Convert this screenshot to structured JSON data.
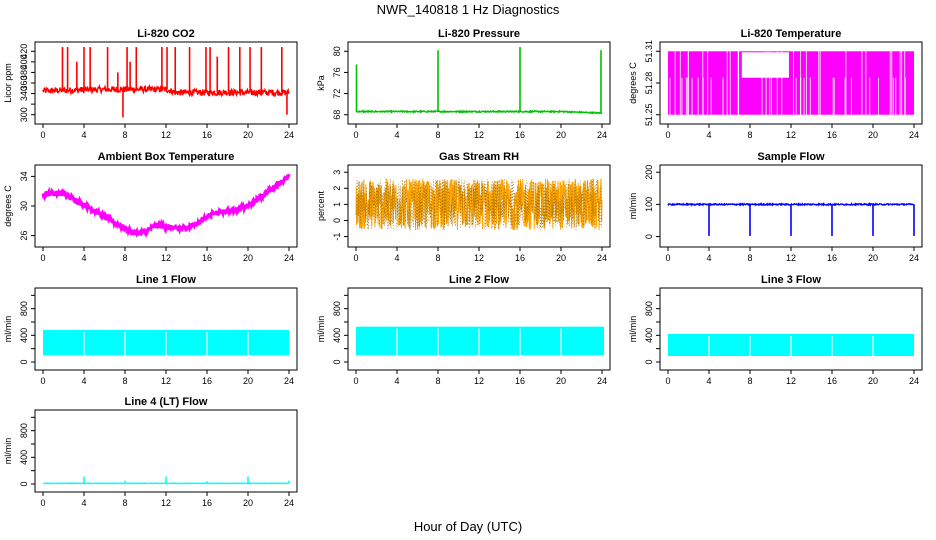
{
  "figure": {
    "title": "NWR_140818  1 Hz Diagnostics",
    "xlabel": "Hour of Day (UTC)"
  },
  "chart_data": [
    {
      "type": "line",
      "title": "Li-820 CO2",
      "ylabel": "Licor ppm",
      "xlim": [
        0,
        24
      ],
      "ylim": [
        290,
        430
      ],
      "xticks": [
        0,
        4,
        8,
        12,
        16,
        20,
        24
      ],
      "yticks": [
        300,
        320,
        340,
        360,
        380,
        400,
        420
      ],
      "yticklabels": [
        "300",
        "",
        "340",
        "360",
        "380",
        "400",
        "420"
      ],
      "color": "#ff0000",
      "baseline_segments": [
        [
          0,
          345
        ],
        [
          6,
          348
        ],
        [
          12,
          348
        ],
        [
          13,
          342
        ],
        [
          24,
          342
        ]
      ],
      "noise": 6,
      "spikes": [
        [
          1.9,
          428
        ],
        [
          2.4,
          428
        ],
        [
          3.3,
          400
        ],
        [
          4,
          428
        ],
        [
          4.6,
          428
        ],
        [
          6.3,
          428
        ],
        [
          7.3,
          380
        ],
        [
          7.8,
          295
        ],
        [
          8.2,
          428
        ],
        [
          8.5,
          400
        ],
        [
          9.1,
          428
        ],
        [
          11.6,
          428
        ],
        [
          12.1,
          428
        ],
        [
          12.9,
          428
        ],
        [
          14.3,
          428
        ],
        [
          15.9,
          428
        ],
        [
          16.3,
          428
        ],
        [
          17,
          410
        ],
        [
          18.1,
          428
        ],
        [
          19.2,
          428
        ],
        [
          20.2,
          428
        ],
        [
          21.3,
          428
        ],
        [
          23.3,
          428
        ],
        [
          23.8,
          300
        ]
      ]
    },
    {
      "type": "line",
      "title": "Li-820 Pressure",
      "ylabel": "kPa",
      "xlim": [
        0,
        24
      ],
      "ylim": [
        67,
        81
      ],
      "xticks": [
        0,
        4,
        8,
        12,
        16,
        20,
        24
      ],
      "yticks": [
        68,
        72,
        76,
        80
      ],
      "yticklabels": [
        "68",
        "72",
        "76",
        "80"
      ],
      "color": "#00c000",
      "baseline_segments": [
        [
          0,
          68.6
        ],
        [
          20,
          68.6
        ],
        [
          24,
          68.3
        ]
      ],
      "noise": 0.12,
      "spikes": [
        [
          0.05,
          77.5
        ],
        [
          8,
          80.2
        ],
        [
          16,
          80.8
        ],
        [
          23.9,
          80.2
        ]
      ]
    },
    {
      "type": "band",
      "title": "Li-820 Temperature",
      "ylabel": "degrees C",
      "xlim": [
        0,
        24
      ],
      "ylim": [
        51.245,
        51.315
      ],
      "xticks": [
        0,
        4,
        8,
        12,
        16,
        20,
        24
      ],
      "yticks": [
        51.25,
        51.28,
        51.31
      ],
      "yticklabels": [
        "51.25",
        "51.28",
        "51.31"
      ],
      "color": "#ff00ff",
      "band": [
        51.25,
        51.31
      ],
      "gap_range": [
        7.2,
        11.8
      ],
      "gap_low": 51.285
    },
    {
      "type": "line",
      "title": "Ambient Box Temperature",
      "ylabel": "degrees C",
      "xlim": [
        0,
        24
      ],
      "ylim": [
        25,
        35
      ],
      "xticks": [
        0,
        4,
        8,
        12,
        16,
        20,
        24
      ],
      "yticks": [
        26,
        30,
        34
      ],
      "yticklabels": [
        "26",
        "30",
        "34"
      ],
      "color": "#ff00ff",
      "curve": [
        [
          0,
          31.5
        ],
        [
          0.5,
          31.8
        ],
        [
          2,
          31.6
        ],
        [
          3,
          31
        ],
        [
          4,
          30.2
        ],
        [
          6,
          28.6
        ],
        [
          8,
          27
        ],
        [
          9,
          26.3
        ],
        [
          10,
          26.5
        ],
        [
          11,
          27.4
        ],
        [
          12,
          27.2
        ],
        [
          13,
          26.9
        ],
        [
          14,
          27.1
        ],
        [
          15,
          27.6
        ],
        [
          16,
          28.6
        ],
        [
          17,
          29.2
        ],
        [
          18,
          29.3
        ],
        [
          19,
          29.5
        ],
        [
          20,
          30
        ],
        [
          21,
          31
        ],
        [
          22,
          32
        ],
        [
          23,
          33
        ],
        [
          24,
          34
        ]
      ],
      "noise": 0.35
    },
    {
      "type": "noise",
      "title": "Gas Stream RH",
      "ylabel": "percent",
      "xlim": [
        0,
        24
      ],
      "ylim": [
        -1.4,
        3.2
      ],
      "xticks": [
        0,
        4,
        8,
        12,
        16,
        20,
        24
      ],
      "yticks": [
        -1,
        0,
        1,
        2,
        3
      ],
      "yticklabels": [
        "-1",
        "0",
        "1",
        "2",
        "3"
      ],
      "color": "#ffa500",
      "color2": "#996600",
      "center": 1,
      "spread": 1.6
    },
    {
      "type": "line",
      "title": "Sample Flow",
      "ylabel": "ml/min",
      "xlim": [
        0,
        24
      ],
      "ylim": [
        -20,
        210
      ],
      "xticks": [
        0,
        4,
        8,
        12,
        16,
        20,
        24
      ],
      "yticks": [
        0,
        100,
        200
      ],
      "yticklabels": [
        "0",
        "100",
        "200"
      ],
      "color": "#0000ff",
      "baseline_segments": [
        [
          0,
          100
        ],
        [
          24,
          100
        ]
      ],
      "noise": 2,
      "spikes": [
        [
          4,
          2
        ],
        [
          8,
          2
        ],
        [
          12,
          2
        ],
        [
          16,
          2
        ],
        [
          20,
          2
        ],
        [
          24,
          2
        ]
      ]
    },
    {
      "type": "band",
      "title": "Line 1 Flow",
      "ylabel": "ml/min",
      "xlim": [
        0,
        24
      ],
      "ylim": [
        -60,
        1050
      ],
      "xticks": [
        0,
        4,
        8,
        12,
        16,
        20,
        24
      ],
      "yticks": [
        0,
        200,
        400,
        600,
        800,
        1000
      ],
      "yticklabels": [
        "0",
        "",
        "400",
        "",
        "800",
        ""
      ],
      "color": "#00ffff",
      "band": [
        100,
        480
      ],
      "gaps": [
        4,
        8,
        12,
        16,
        20
      ],
      "xend": 24
    },
    {
      "type": "band",
      "title": "Line 2 Flow",
      "ylabel": "ml/min",
      "xlim": [
        0,
        24
      ],
      "ylim": [
        -60,
        1050
      ],
      "xticks": [
        0,
        4,
        8,
        12,
        16,
        20,
        24
      ],
      "yticks": [
        0,
        200,
        400,
        600,
        800,
        1000
      ],
      "yticklabels": [
        "0",
        "",
        "400",
        "",
        "800",
        ""
      ],
      "color": "#00ffff",
      "band": [
        100,
        530
      ],
      "gaps": [
        4,
        8,
        12,
        16,
        20
      ],
      "xend": 24.2
    },
    {
      "type": "band",
      "title": "Line 3 Flow",
      "ylabel": "ml/min",
      "xlim": [
        0,
        24
      ],
      "ylim": [
        -60,
        1050
      ],
      "xticks": [
        0,
        4,
        8,
        12,
        16,
        20,
        24
      ],
      "yticks": [
        0,
        200,
        400,
        600,
        800,
        1000
      ],
      "yticklabels": [
        "0",
        "",
        "400",
        "",
        "800",
        ""
      ],
      "color": "#00ffff",
      "band": [
        90,
        420
      ],
      "gaps": [
        4,
        8,
        12,
        16,
        20
      ],
      "xend": 24
    },
    {
      "type": "line",
      "title": "Line 4 (LT) Flow",
      "ylabel": "ml/min",
      "xlim": [
        0,
        24
      ],
      "ylim": [
        -60,
        1050
      ],
      "xticks": [
        0,
        4,
        8,
        12,
        16,
        20,
        24
      ],
      "yticks": [
        0,
        200,
        400,
        600,
        800,
        1000
      ],
      "yticklabels": [
        "0",
        "",
        "400",
        "",
        "800",
        ""
      ],
      "color": "#00ffff",
      "baseline_segments": [
        [
          0,
          10
        ],
        [
          24,
          10
        ]
      ],
      "noise": 3,
      "spikes": [
        [
          4,
          110
        ],
        [
          8,
          50
        ],
        [
          12,
          110
        ],
        [
          16,
          40
        ],
        [
          20,
          110
        ],
        [
          24,
          50
        ]
      ]
    }
  ]
}
